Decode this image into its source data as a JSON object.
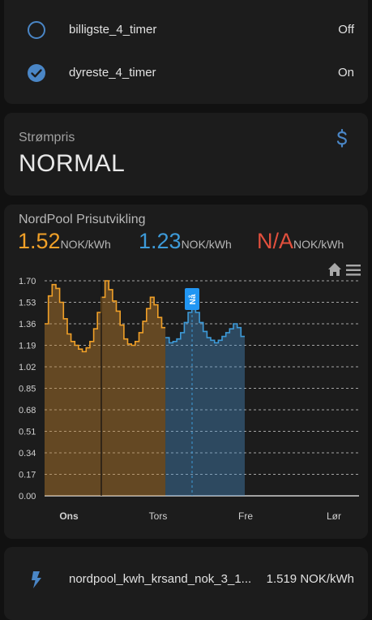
{
  "switches": [
    {
      "name": "billigste_4_timer",
      "state": "Off",
      "checked": false
    },
    {
      "name": "dyreste_4_timer",
      "state": "On",
      "checked": true
    }
  ],
  "sensor": {
    "label": "Strømpris",
    "value": "NORMAL",
    "icon": "currency-usd-icon"
  },
  "chart": {
    "title": "NordPool Prisutvikling",
    "stats": [
      {
        "value": "1.52",
        "unit": "NOK/kWh",
        "color": "#f0a028"
      },
      {
        "value": "1.23",
        "unit": "NOK/kWh",
        "color": "#3d9ad8"
      },
      {
        "value": "N/A",
        "unit": "NOK/kWh",
        "color": "#e2503d"
      }
    ],
    "toolbar": {
      "home_icon": "home-icon",
      "menu_icon": "menu-icon"
    },
    "now_label": "Nå"
  },
  "chart_data": {
    "type": "area",
    "yticks": [
      "1.70",
      "1.53",
      "1.36",
      "1.19",
      "1.02",
      "0.85",
      "0.68",
      "0.51",
      "0.34",
      "0.17",
      "0.00"
    ],
    "ylim": [
      0,
      1.7
    ],
    "xticks": [
      "Ons",
      "Tors",
      "Fre",
      "Lør"
    ],
    "grid": true,
    "series": [
      {
        "color": "#f0a028",
        "values": [
          1.36,
          1.58,
          1.67,
          1.64,
          1.53,
          1.4,
          1.28,
          1.22,
          1.19,
          1.16,
          1.14,
          1.17,
          1.22,
          1.32,
          1.45,
          1.57,
          1.7,
          1.63,
          1.54,
          1.46,
          1.35,
          1.24,
          1.2,
          1.19,
          1.22,
          1.29,
          1.38,
          1.48,
          1.57,
          1.51,
          1.41,
          1.33
        ]
      },
      {
        "color": "#3d9ad8",
        "values": [
          1.25,
          1.21,
          1.22,
          1.24,
          1.29,
          1.37,
          1.45,
          1.58,
          1.45,
          1.37,
          1.3,
          1.25,
          1.23,
          1.21,
          1.23,
          1.26,
          1.29,
          1.32,
          1.36,
          1.33,
          1.26
        ]
      }
    ]
  },
  "entity": {
    "name": "nordpool_kwh_krsand_nok_3_1...",
    "value": "1.519 NOK/kWh",
    "icon": "flash-icon"
  }
}
